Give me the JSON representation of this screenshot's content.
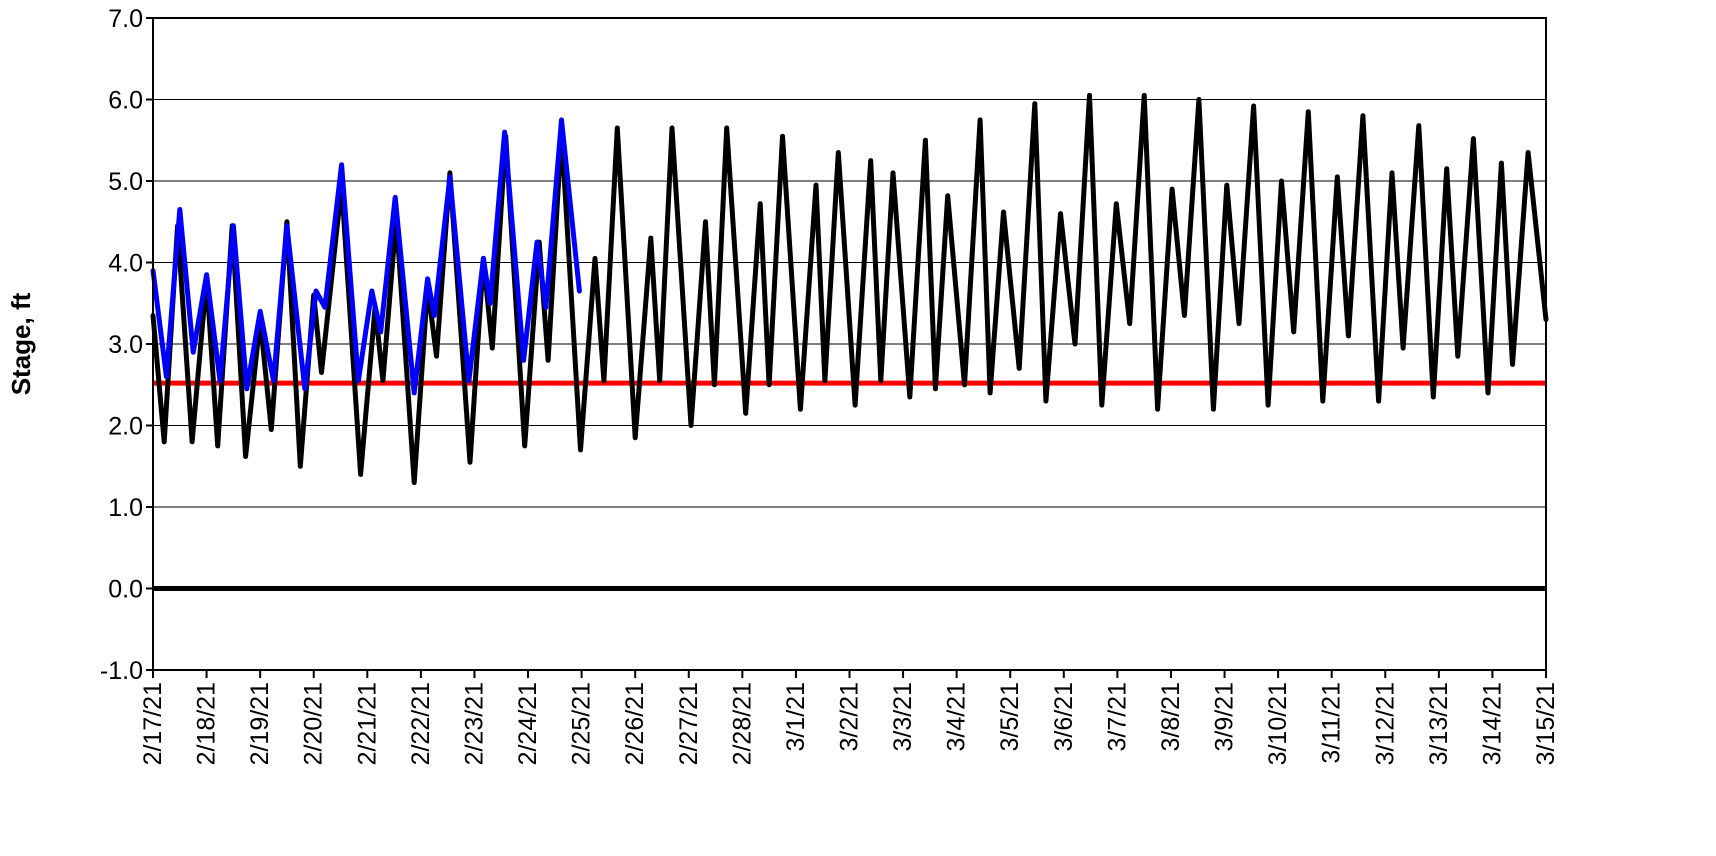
{
  "chart_data": {
    "type": "line",
    "title": "",
    "xlabel": "",
    "ylabel": "Stage, ft",
    "ylim": [
      -1.0,
      7.0
    ],
    "yticks": [
      "-1.0",
      "0.0",
      "1.0",
      "2.0",
      "3.0",
      "4.0",
      "5.0",
      "6.0",
      "7.0"
    ],
    "xlim": [
      "2/17/21",
      "3/15/21"
    ],
    "xticks": [
      "2/17/21",
      "2/18/21",
      "2/19/21",
      "2/20/21",
      "2/21/21",
      "2/22/21",
      "2/23/21",
      "2/24/21",
      "2/25/21",
      "2/26/21",
      "2/27/21",
      "2/28/21",
      "3/1/21",
      "3/2/21",
      "3/3/21",
      "3/4/21",
      "3/5/21",
      "3/6/21",
      "3/7/21",
      "3/8/21",
      "3/9/21",
      "3/10/21",
      "3/11/21",
      "3/12/21",
      "3/13/21",
      "3/14/21",
      "3/15/21"
    ],
    "grid": "horizontal",
    "colors": {
      "black_series": "#000000",
      "blue_series": "#0000ff",
      "threshold": "#ff0000",
      "zero_line": "#000000"
    },
    "reference_lines": [
      {
        "y": 2.52,
        "color": "#ff0000"
      },
      {
        "y": 0.0,
        "color": "#000000"
      }
    ],
    "series": [
      {
        "color": "#000000",
        "points": [
          [
            "2/17/21 00:00",
            3.35
          ],
          [
            "2/17/21 05:00",
            1.8
          ],
          [
            "2/17/21 11:00",
            4.45
          ],
          [
            "2/17/21 17:30",
            1.8
          ],
          [
            "2/18/21 00:00",
            3.8
          ],
          [
            "2/18/21 05:00",
            1.75
          ],
          [
            "2/18/21 11:30",
            4.45
          ],
          [
            "2/18/21 17:30",
            1.62
          ],
          [
            "2/19/21 00:00",
            3.3
          ],
          [
            "2/19/21 05:00",
            1.95
          ],
          [
            "2/19/21 12:00",
            4.5
          ],
          [
            "2/19/21 18:00",
            1.5
          ],
          [
            "2/20/21 00:00",
            3.6
          ],
          [
            "2/20/21 03:30",
            2.65
          ],
          [
            "2/20/21 12:30",
            4.95
          ],
          [
            "2/20/21 21:00",
            1.4
          ],
          [
            "2/21/21 03:30",
            3.45
          ],
          [
            "2/21/21 07:00",
            2.55
          ],
          [
            "2/21/21 13:00",
            4.55
          ],
          [
            "2/21/21 21:00",
            1.3
          ],
          [
            "2/22/21 03:00",
            3.7
          ],
          [
            "2/22/21 07:00",
            2.85
          ],
          [
            "2/22/21 13:00",
            5.1
          ],
          [
            "2/22/21 22:00",
            1.55
          ],
          [
            "2/23/21 04:00",
            4.05
          ],
          [
            "2/23/21 08:00",
            2.95
          ],
          [
            "2/23/21 14:00",
            5.55
          ],
          [
            "2/23/21 22:30",
            1.75
          ],
          [
            "2/24/21 05:00",
            4.25
          ],
          [
            "2/24/21 09:00",
            2.8
          ],
          [
            "2/24/21 15:00",
            5.6
          ],
          [
            "2/24/21 23:30",
            1.7
          ],
          [
            "2/25/21 06:00",
            4.05
          ],
          [
            "2/25/21 10:00",
            2.55
          ],
          [
            "2/25/21 16:00",
            5.65
          ],
          [
            "2/26/21 00:00",
            1.85
          ],
          [
            "2/26/21 07:00",
            4.3
          ],
          [
            "2/26/21 11:00",
            2.55
          ],
          [
            "2/26/21 16:30",
            5.65
          ],
          [
            "2/27/21 01:00",
            2.0
          ],
          [
            "2/27/21 07:30",
            4.5
          ],
          [
            "2/27/21 11:30",
            2.5
          ],
          [
            "2/27/21 17:00",
            5.65
          ],
          [
            "2/28/21 01:30",
            2.15
          ],
          [
            "2/28/21 08:00",
            4.72
          ],
          [
            "2/28/21 12:00",
            2.5
          ],
          [
            "2/28/21 18:00",
            5.55
          ],
          [
            "3/1/21 02:00",
            2.2
          ],
          [
            "3/1/21 09:00",
            4.95
          ],
          [
            "3/1/21 13:00",
            2.55
          ],
          [
            "3/1/21 19:00",
            5.35
          ],
          [
            "3/2/21 02:30",
            2.25
          ],
          [
            "3/2/21 09:30",
            5.25
          ],
          [
            "3/2/21 14:00",
            2.55
          ],
          [
            "3/2/21 19:30",
            5.1
          ],
          [
            "3/3/21 03:00",
            2.35
          ],
          [
            "3/3/21 10:00",
            5.5
          ],
          [
            "3/3/21 14:30",
            2.45
          ],
          [
            "3/3/21 20:00",
            4.82
          ],
          [
            "3/4/21 03:30",
            2.5
          ],
          [
            "3/4/21 10:30",
            5.75
          ],
          [
            "3/4/21 15:00",
            2.4
          ],
          [
            "3/4/21 21:00",
            4.62
          ],
          [
            "3/5/21 04:00",
            2.7
          ],
          [
            "3/5/21 11:00",
            5.95
          ],
          [
            "3/5/21 16:00",
            2.3
          ],
          [
            "3/5/21 22:30",
            4.6
          ],
          [
            "3/6/21 05:00",
            3.0
          ],
          [
            "3/6/21 11:30",
            6.05
          ],
          [
            "3/6/21 17:00",
            2.25
          ],
          [
            "3/6/21 23:30",
            4.72
          ],
          [
            "3/7/21 05:30",
            3.25
          ],
          [
            "3/7/21 12:00",
            6.05
          ],
          [
            "3/7/21 18:00",
            2.2
          ],
          [
            "3/8/21 00:30",
            4.9
          ],
          [
            "3/8/21 06:00",
            3.35
          ],
          [
            "3/8/21 12:30",
            6.0
          ],
          [
            "3/8/21 19:00",
            2.2
          ],
          [
            "3/9/21 01:00",
            4.95
          ],
          [
            "3/9/21 06:30",
            3.25
          ],
          [
            "3/9/21 13:00",
            5.92
          ],
          [
            "3/9/21 19:30",
            2.25
          ],
          [
            "3/10/21 01:30",
            5.0
          ],
          [
            "3/10/21 07:00",
            3.15
          ],
          [
            "3/10/21 13:30",
            5.85
          ],
          [
            "3/10/21 20:00",
            2.3
          ],
          [
            "3/11/21 02:30",
            5.05
          ],
          [
            "3/11/21 07:30",
            3.1
          ],
          [
            "3/11/21 14:00",
            5.8
          ],
          [
            "3/11/21 21:00",
            2.3
          ],
          [
            "3/12/21 03:00",
            5.1
          ],
          [
            "3/12/21 08:00",
            2.95
          ],
          [
            "3/12/21 15:00",
            5.68
          ],
          [
            "3/12/21 21:30",
            2.35
          ],
          [
            "3/13/21 03:30",
            5.15
          ],
          [
            "3/13/21 08:30",
            2.85
          ],
          [
            "3/13/21 15:30",
            5.52
          ],
          [
            "3/13/21 22:00",
            2.4
          ],
          [
            "3/14/21 04:00",
            5.22
          ],
          [
            "3/14/21 09:00",
            2.75
          ],
          [
            "3/14/21 16:00",
            5.35
          ],
          [
            "3/15/21 00:00",
            3.3
          ]
        ]
      },
      {
        "color": "#0000ff",
        "points": [
          [
            "2/17/21 00:00",
            3.9
          ],
          [
            "2/17/21 06:00",
            2.6
          ],
          [
            "2/17/21 12:00",
            4.65
          ],
          [
            "2/17/21 18:00",
            2.9
          ],
          [
            "2/18/21 00:00",
            3.85
          ],
          [
            "2/18/21 06:00",
            2.55
          ],
          [
            "2/18/21 12:00",
            4.45
          ],
          [
            "2/18/21 18:00",
            2.45
          ],
          [
            "2/19/21 00:00",
            3.4
          ],
          [
            "2/19/21 06:00",
            2.55
          ],
          [
            "2/19/21 12:00",
            4.45
          ],
          [
            "2/19/21 20:00",
            2.45
          ],
          [
            "2/20/21 01:00",
            3.65
          ],
          [
            "2/20/21 05:00",
            3.45
          ],
          [
            "2/20/21 12:30",
            5.2
          ],
          [
            "2/20/21 20:00",
            2.55
          ],
          [
            "2/21/21 02:00",
            3.65
          ],
          [
            "2/21/21 06:00",
            3.15
          ],
          [
            "2/21/21 12:30",
            4.8
          ],
          [
            "2/21/21 21:00",
            2.4
          ],
          [
            "2/22/21 03:00",
            3.8
          ],
          [
            "2/22/21 06:00",
            3.35
          ],
          [
            "2/22/21 13:00",
            5.05
          ],
          [
            "2/22/21 21:30",
            2.55
          ],
          [
            "2/23/21 04:00",
            4.05
          ],
          [
            "2/23/21 07:00",
            3.5
          ],
          [
            "2/23/21 13:30",
            5.6
          ],
          [
            "2/23/21 22:00",
            2.8
          ],
          [
            "2/24/21 04:00",
            4.25
          ],
          [
            "2/24/21 08:00",
            3.45
          ],
          [
            "2/24/21 15:00",
            5.75
          ],
          [
            "2/24/21 23:00",
            3.65
          ]
        ]
      }
    ]
  }
}
